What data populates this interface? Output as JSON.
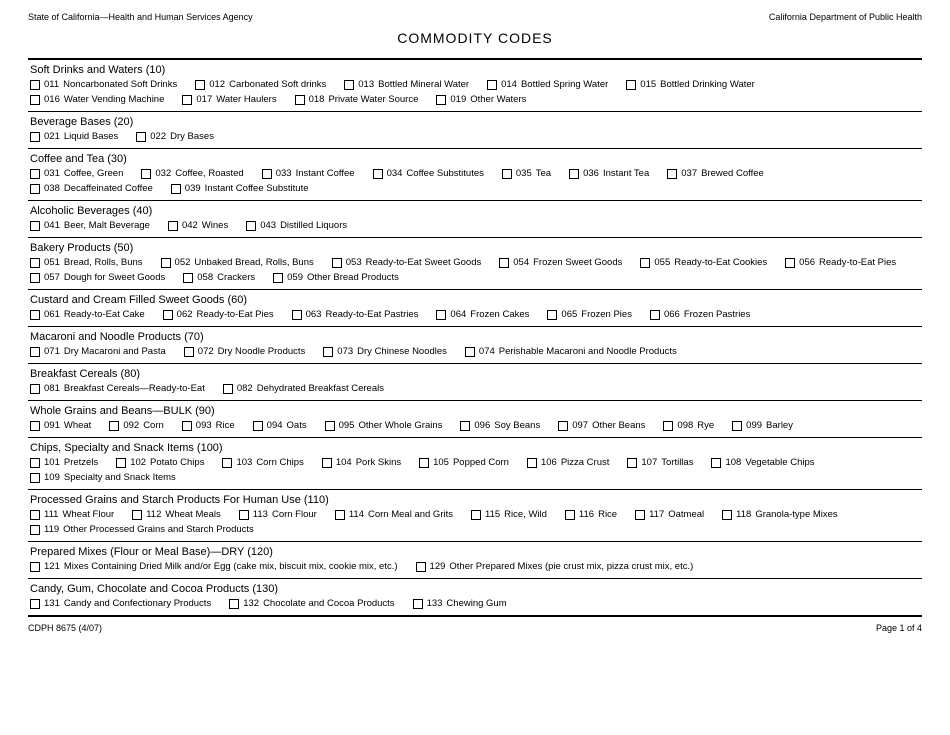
{
  "header": {
    "left": "State of California—Health and Human Services Agency",
    "right": "California Department of Public Health"
  },
  "title": "COMMODITY CODES",
  "footer": {
    "left": "CDPH 8675 (4/07)",
    "right": "Page 1 of 4"
  },
  "sections": [
    {
      "title": "Soft Drinks and Waters   (10)",
      "items": [
        {
          "code": "011",
          "label": "Noncarbonated Soft Drinks"
        },
        {
          "code": "012",
          "label": "Carbonated Soft drinks"
        },
        {
          "code": "013",
          "label": "Bottled Mineral Water"
        },
        {
          "code": "014",
          "label": "Bottled Spring Water"
        },
        {
          "code": "015",
          "label": "Bottled Drinking Water"
        },
        {
          "code": "016",
          "label": "Water Vending Machine"
        },
        {
          "code": "017",
          "label": "Water Haulers"
        },
        {
          "code": "018",
          "label": "Private Water Source"
        },
        {
          "code": "019",
          "label": "Other Waters"
        }
      ]
    },
    {
      "title": "Beverage Bases   (20)",
      "items": [
        {
          "code": "021",
          "label": "Liquid Bases"
        },
        {
          "code": "022",
          "label": "Dry Bases"
        }
      ]
    },
    {
      "title": "Coffee and Tea   (30)",
      "items": [
        {
          "code": "031",
          "label": "Coffee, Green"
        },
        {
          "code": "032",
          "label": "Coffee, Roasted"
        },
        {
          "code": "033",
          "label": "Instant Coffee"
        },
        {
          "code": "034",
          "label": "Coffee Substitutes"
        },
        {
          "code": "035",
          "label": "Tea"
        },
        {
          "code": "036",
          "label": "Instant Tea"
        },
        {
          "code": "037",
          "label": "Brewed Coffee"
        },
        {
          "code": "038",
          "label": "Decaffeinated Coffee"
        },
        {
          "code": "039",
          "label": "Instant Coffee Substitute"
        }
      ]
    },
    {
      "title": "Alcoholic Beverages   (40)",
      "items": [
        {
          "code": "041",
          "label": "Beer, Malt Beverage"
        },
        {
          "code": "042",
          "label": "Wines"
        },
        {
          "code": "043",
          "label": "Distilled Liquors"
        }
      ]
    },
    {
      "title": "Bakery Products   (50)",
      "items": [
        {
          "code": "051",
          "label": "Bread, Rolls, Buns"
        },
        {
          "code": "052",
          "label": "Unbaked Bread, Rolls, Buns"
        },
        {
          "code": "053",
          "label": "Ready-to-Eat Sweet Goods"
        },
        {
          "code": "054",
          "label": "Frozen Sweet Goods"
        },
        {
          "code": "055",
          "label": "Ready-to-Eat Cookies"
        },
        {
          "code": "056",
          "label": "Ready-to-Eat Pies"
        },
        {
          "code": "057",
          "label": "Dough for Sweet Goods"
        },
        {
          "code": "058",
          "label": "Crackers"
        },
        {
          "code": "059",
          "label": "Other Bread Products"
        }
      ]
    },
    {
      "title": "Custard and Cream Filled Sweet Goods   (60)",
      "items": [
        {
          "code": "061",
          "label": "Ready-to-Eat Cake"
        },
        {
          "code": "062",
          "label": "Ready-to-Eat Pies"
        },
        {
          "code": "063",
          "label": "Ready-to-Eat Pastries"
        },
        {
          "code": "064",
          "label": "Frozen Cakes"
        },
        {
          "code": "065",
          "label": "Frozen Pies"
        },
        {
          "code": "066",
          "label": "Frozen Pastries"
        }
      ]
    },
    {
      "title": "Macaroni and Noodle Products   (70)",
      "items": [
        {
          "code": "071",
          "label": "Dry Macaroni and Pasta"
        },
        {
          "code": "072",
          "label": "Dry Noodle Products"
        },
        {
          "code": "073",
          "label": "Dry Chinese Noodles"
        },
        {
          "code": "074",
          "label": "Perishable Macaroni and Noodle Products"
        }
      ]
    },
    {
      "title": "Breakfast Cereals   (80)",
      "items": [
        {
          "code": "081",
          "label": "Breakfast Cereals—Ready-to-Eat"
        },
        {
          "code": "082",
          "label": "Dehydrated Breakfast Cereals"
        }
      ]
    },
    {
      "title": "Whole Grains and Beans—BULK   (90)",
      "items": [
        {
          "code": "091",
          "label": "Wheat"
        },
        {
          "code": "092",
          "label": "Corn"
        },
        {
          "code": "093",
          "label": "Rice"
        },
        {
          "code": "094",
          "label": "Oats"
        },
        {
          "code": "095",
          "label": "Other Whole Grains"
        },
        {
          "code": "096",
          "label": "Soy Beans"
        },
        {
          "code": "097",
          "label": "Other Beans"
        },
        {
          "code": "098",
          "label": "Rye"
        },
        {
          "code": "099",
          "label": "Barley"
        }
      ]
    },
    {
      "title": "Chips, Specialty and Snack Items   (100)",
      "items": [
        {
          "code": "101",
          "label": "Pretzels"
        },
        {
          "code": "102",
          "label": "Potato Chips"
        },
        {
          "code": "103",
          "label": "Corn Chips"
        },
        {
          "code": "104",
          "label": "Pork Skins"
        },
        {
          "code": "105",
          "label": "Popped Corn"
        },
        {
          "code": "106",
          "label": "Pizza Crust"
        },
        {
          "code": "107",
          "label": "Tortillas"
        },
        {
          "code": "108",
          "label": "Vegetable Chips"
        },
        {
          "code": "109",
          "label": "Specialty and Snack Items"
        }
      ]
    },
    {
      "title": "Processed Grains and Starch Products For Human Use   (110)",
      "items": [
        {
          "code": "111",
          "label": "Wheat Flour"
        },
        {
          "code": "112",
          "label": "Wheat Meals"
        },
        {
          "code": "113",
          "label": "Corn Flour"
        },
        {
          "code": "114",
          "label": "Corn Meal and Grits"
        },
        {
          "code": "115",
          "label": "Rice, Wild"
        },
        {
          "code": "116",
          "label": "Rice"
        },
        {
          "code": "117",
          "label": "Oatmeal"
        },
        {
          "code": "118",
          "label": "Granola-type Mixes"
        },
        {
          "code": "119",
          "label": "Other Processed Grains and Starch Products"
        }
      ]
    },
    {
      "title": "Prepared Mixes (Flour or Meal Base)—DRY   (120)",
      "items": [
        {
          "code": "121",
          "label": "Mixes Containing Dried Milk and/or Egg (cake mix, biscuit mix, cookie mix, etc.)"
        },
        {
          "code": "129",
          "label": "Other Prepared Mixes (pie crust mix, pizza crust mix, etc.)"
        }
      ]
    },
    {
      "title": "Candy, Gum, Chocolate and Cocoa Products   (130)",
      "items": [
        {
          "code": "131",
          "label": "Candy and Confectionary Products"
        },
        {
          "code": "132",
          "label": "Chocolate and Cocoa Products"
        },
        {
          "code": "133",
          "label": "Chewing Gum"
        }
      ]
    }
  ]
}
